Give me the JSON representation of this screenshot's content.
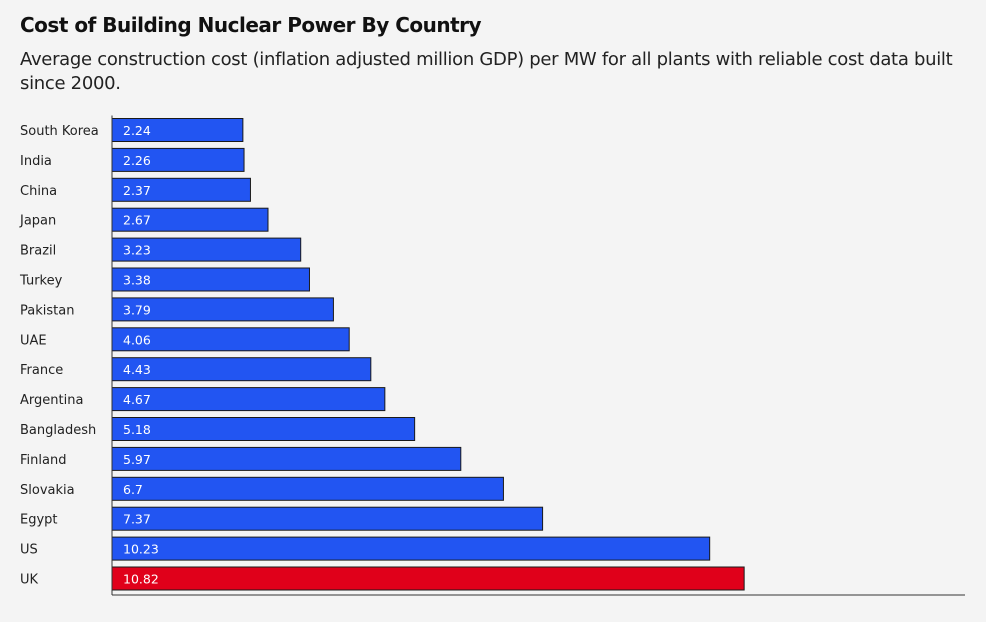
{
  "title": "Cost of Building Nuclear Power By Country",
  "subtitle": "Average construction cost (inflation adjusted million GDP) per MW for all plants with reliable cost data built since 2000.",
  "colors": {
    "background": "#f4f4f4",
    "bar_default": "#2255f2",
    "bar_highlight": "#e0001a",
    "bar_label": "#ffffff",
    "category_label": "#222222",
    "axis": "#333333"
  },
  "chart_data": {
    "type": "bar",
    "orientation": "horizontal",
    "title": "Cost of Building Nuclear Power By Country",
    "subtitle": "Average construction cost (inflation adjusted million GDP) per MW for all plants with reliable cost data built since 2000.",
    "categories": [
      "South Korea",
      "India",
      "China",
      "Japan",
      "Brazil",
      "Turkey",
      "Pakistan",
      "UAE",
      "France",
      "Argentina",
      "Bangladesh",
      "Finland",
      "Slovakia",
      "Egypt",
      "US",
      "UK"
    ],
    "values": [
      2.24,
      2.26,
      2.37,
      2.67,
      3.23,
      3.38,
      3.79,
      4.06,
      4.43,
      4.67,
      5.18,
      5.97,
      6.7,
      7.37,
      10.23,
      10.82
    ],
    "value_labels": [
      "2.24",
      "2.26",
      "2.37",
      "2.67",
      "3.23",
      "3.38",
      "3.79",
      "4.06",
      "4.43",
      "4.67",
      "5.18",
      "5.97",
      "6.7",
      "7.37",
      "10.23",
      "10.82"
    ],
    "highlight": [
      "UK"
    ],
    "xlim": [
      0,
      14.6
    ],
    "grid": false,
    "legend": "none",
    "xlabel": "",
    "ylabel": ""
  }
}
